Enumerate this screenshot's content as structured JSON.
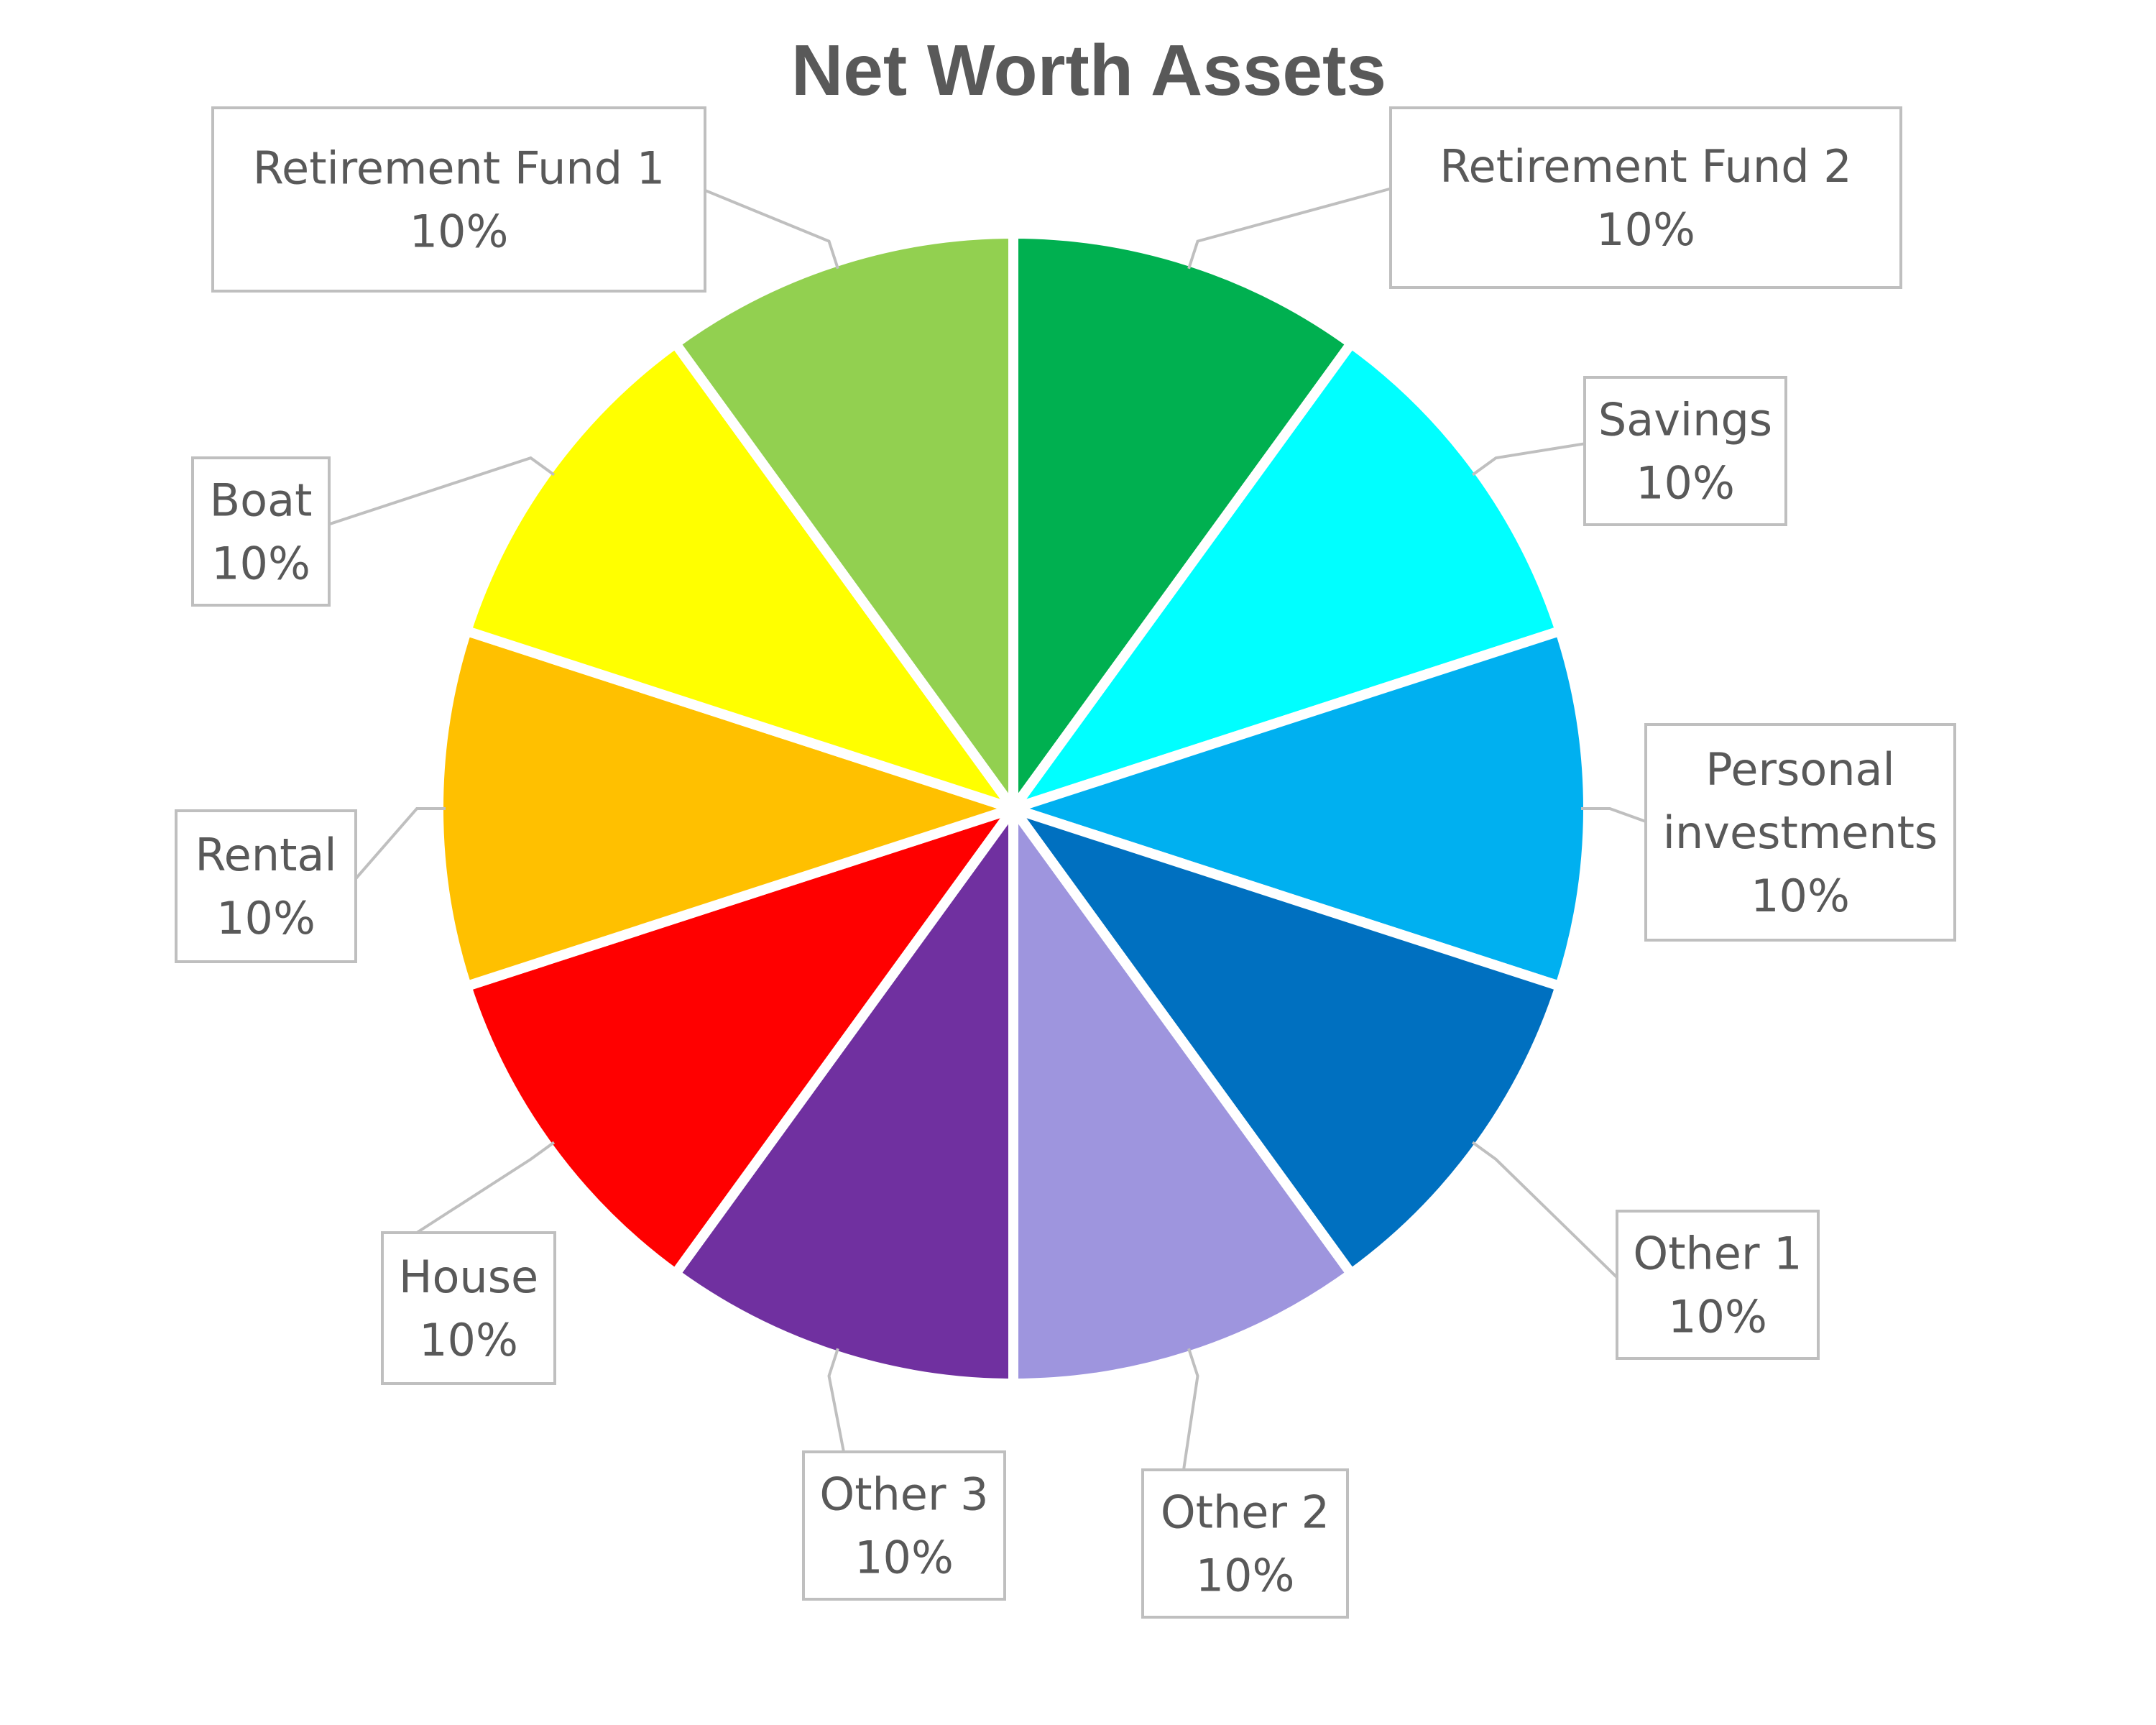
{
  "chart_data": {
    "type": "pie",
    "title": "Net Worth Assets",
    "slices": [
      {
        "label": "Retirement Fund 2",
        "value_label": "10%",
        "value": 10,
        "color": "#00B050"
      },
      {
        "label": "Savings",
        "value_label": "10%",
        "value": 10,
        "color": "#00FFFF"
      },
      {
        "label": "Personal investments",
        "value_label": "10%",
        "value": 10,
        "color": "#00B0F0"
      },
      {
        "label": "Other 1",
        "value_label": "10%",
        "value": 10,
        "color": "#0070C0"
      },
      {
        "label": "Other 2",
        "value_label": "10%",
        "value": 10,
        "color": "#9E95DE"
      },
      {
        "label": "Other 3",
        "value_label": "10%",
        "value": 10,
        "color": "#7030A0"
      },
      {
        "label": "House",
        "value_label": "10%",
        "value": 10,
        "color": "#FF0000"
      },
      {
        "label": "Rental",
        "value_label": "10%",
        "value": 10,
        "color": "#FFC000"
      },
      {
        "label": "Boat",
        "value_label": "10%",
        "value": 10,
        "color": "#FFFF00"
      },
      {
        "label": "Retirement Fund 1",
        "value_label": "10%",
        "value": 10,
        "color": "#92D050"
      }
    ],
    "legend": "none",
    "data_labels": "callouts"
  }
}
